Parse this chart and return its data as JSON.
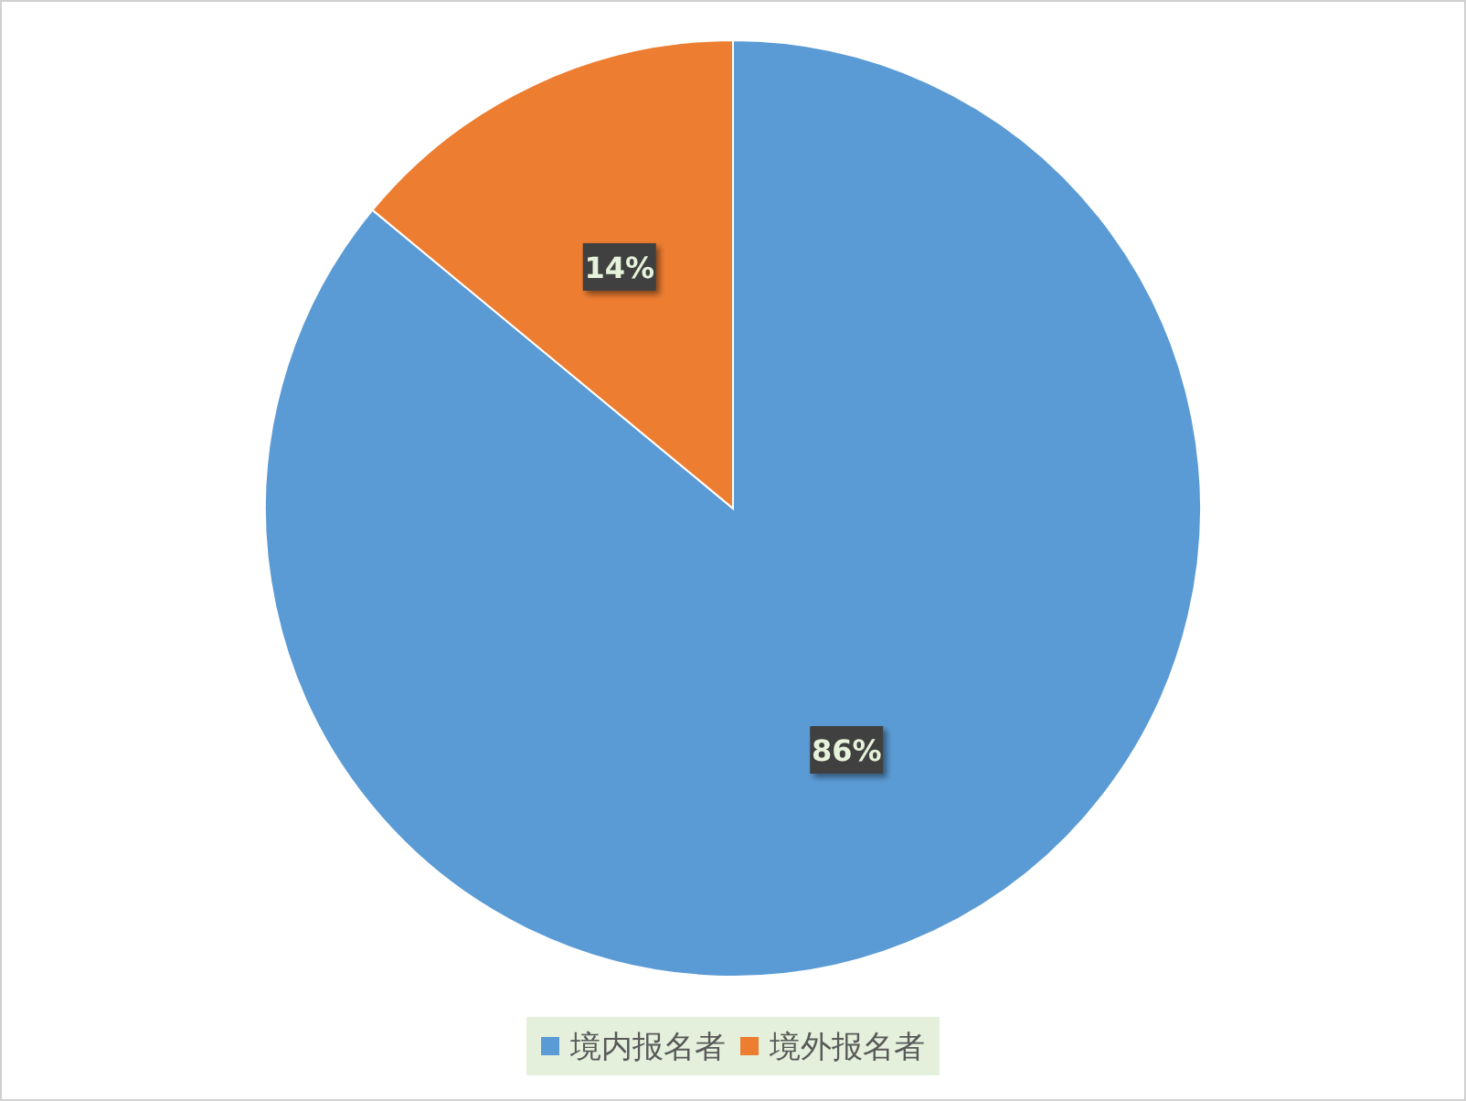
{
  "chart_data": {
    "type": "pie",
    "categories": [
      "境内报名者",
      "境外报名者"
    ],
    "values": [
      86,
      14
    ],
    "colors": [
      "#5b9bd5",
      "#ed7d31"
    ],
    "value_labels": [
      "86%",
      "14%"
    ],
    "legend": "bottom"
  }
}
